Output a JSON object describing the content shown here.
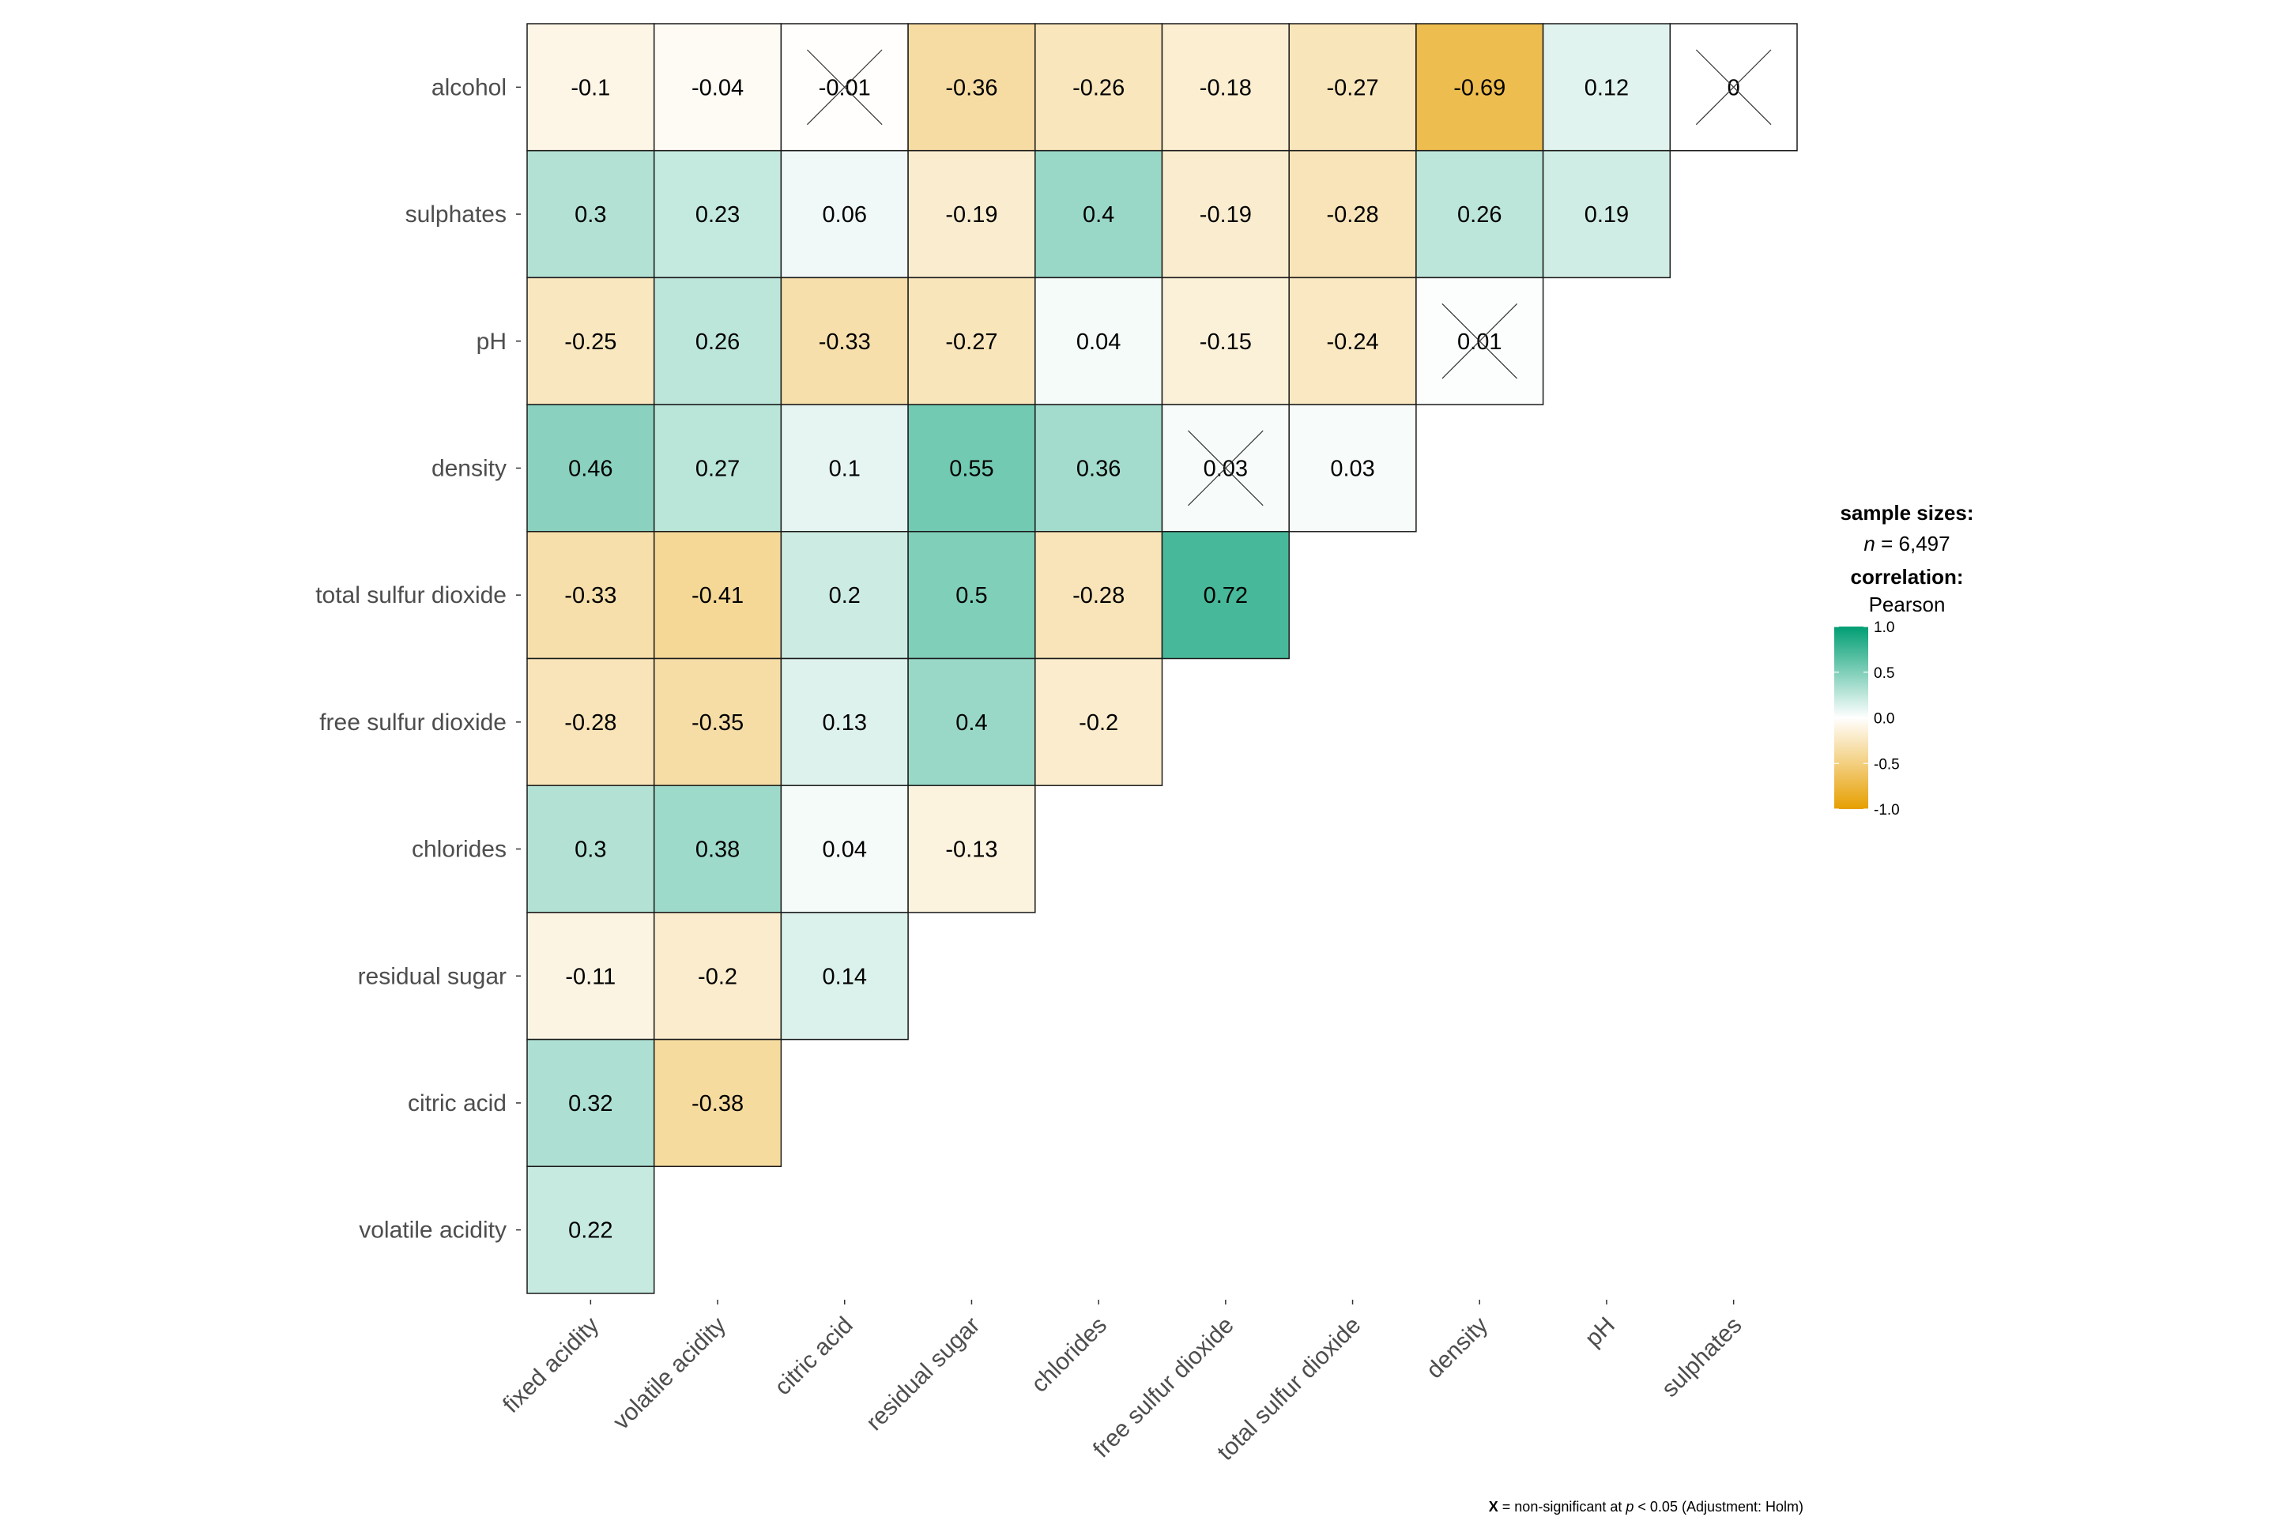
{
  "chart_data": {
    "type": "heatmap",
    "rows": [
      "alcohol",
      "sulphates",
      "pH",
      "density",
      "total sulfur dioxide",
      "free sulfur dioxide",
      "chlorides",
      "residual sugar",
      "citric acid",
      "volatile acidity"
    ],
    "columns": [
      "fixed acidity",
      "volatile acidity",
      "citric acid",
      "residual sugar",
      "chlorides",
      "free sulfur dioxide",
      "total sulfur dioxide",
      "density",
      "pH",
      "sulphates"
    ],
    "values": [
      [
        -0.1,
        -0.04,
        -0.01,
        -0.36,
        -0.26,
        -0.18,
        -0.27,
        -0.69,
        0.12,
        0
      ],
      [
        0.3,
        0.23,
        0.06,
        -0.19,
        0.4,
        -0.19,
        -0.28,
        0.26,
        0.19
      ],
      [
        -0.25,
        0.26,
        -0.33,
        -0.27,
        0.04,
        -0.15,
        -0.24,
        0.01
      ],
      [
        0.46,
        0.27,
        0.1,
        0.55,
        0.36,
        0.03,
        0.03
      ],
      [
        -0.33,
        -0.41,
        0.2,
        0.5,
        -0.28,
        0.72
      ],
      [
        -0.28,
        -0.35,
        0.13,
        0.4,
        -0.2
      ],
      [
        0.3,
        0.38,
        0.04,
        -0.13
      ],
      [
        -0.11,
        -0.2,
        0.14
      ],
      [
        0.32,
        -0.38
      ],
      [
        0.22
      ]
    ],
    "non_significant": [
      {
        "row": "alcohol",
        "column": "citric acid"
      },
      {
        "row": "alcohol",
        "column": "sulphates"
      },
      {
        "row": "pH",
        "column": "density"
      },
      {
        "row": "density",
        "column": "free sulfur dioxide"
      }
    ],
    "legend": {
      "sample_sizes_title": "sample sizes:",
      "n_symbol": "n",
      "n_text": " = 6,497",
      "correlation_title": "correlation:",
      "method": "Pearson",
      "ticks": [
        "1.0",
        "0.5",
        "0.0",
        "-0.5",
        "-1.0"
      ],
      "range": [
        -1,
        1
      ],
      "colors": {
        "high": "#009E73",
        "mid": "#FFFFFF",
        "low": "#E69F00"
      },
      "placement": "right"
    },
    "caption": {
      "symbol": "X",
      "text1": " = non-significant at ",
      "p": "p",
      "text2": " < 0.05 (Adjustment: Holm)"
    }
  }
}
